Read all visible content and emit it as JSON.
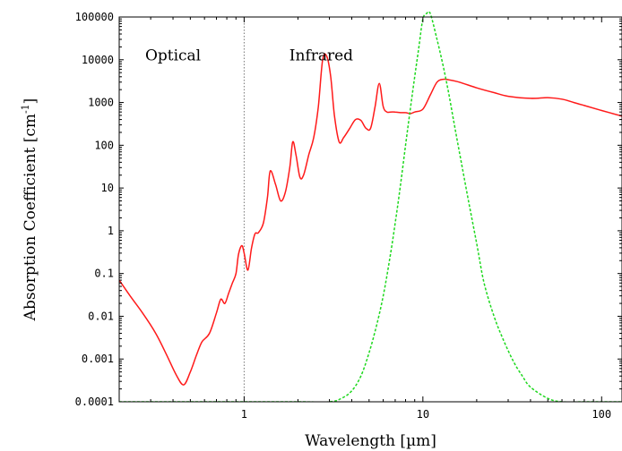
{
  "chart_data": {
    "type": "line",
    "title": "",
    "xlabel": "Wavelength  [µm]",
    "ylabel": {
      "text": "Absorption Coefficient [cm",
      "sup": "-1",
      "close": "]"
    },
    "x_scale": "log",
    "y_scale": "log",
    "xlim": [
      0.2,
      130
    ],
    "ylim": [
      0.0001,
      100000
    ],
    "x_ticks": [
      {
        "value": 1,
        "label": "1"
      },
      {
        "value": 10,
        "label": "10"
      },
      {
        "value": 100,
        "label": "100"
      }
    ],
    "y_ticks": [
      {
        "value": 0.0001,
        "label": "0.0001"
      },
      {
        "value": 0.001,
        "label": "0.001"
      },
      {
        "value": 0.01,
        "label": "0.01"
      },
      {
        "value": 0.1,
        "label": "0.1"
      },
      {
        "value": 1,
        "label": "1"
      },
      {
        "value": 10,
        "label": "10"
      },
      {
        "value": 100,
        "label": "100"
      },
      {
        "value": 1000,
        "label": "1000"
      },
      {
        "value": 10000,
        "label": "10000"
      },
      {
        "value": 100000,
        "label": "100000"
      }
    ],
    "grid": false,
    "annotations": [
      {
        "text": "Optical",
        "x": 0.4,
        "y": 13000
      },
      {
        "text": "Infrared",
        "x": 2.7,
        "y": 13000
      }
    ],
    "reference_lines": [
      {
        "orientation": "vertical",
        "x": 1,
        "style": "dotted",
        "color": "#777777"
      }
    ],
    "series": [
      {
        "color": "#ff1a1a",
        "style": "solid",
        "x": [
          0.2,
          0.23,
          0.27,
          0.32,
          0.37,
          0.42,
          0.46,
          0.5,
          0.54,
          0.58,
          0.64,
          0.7,
          0.74,
          0.78,
          0.82,
          0.86,
          0.9,
          0.93,
          0.97,
          1.0,
          1.05,
          1.1,
          1.15,
          1.2,
          1.28,
          1.35,
          1.4,
          1.5,
          1.6,
          1.7,
          1.8,
          1.87,
          1.95,
          2.05,
          2.15,
          2.3,
          2.45,
          2.6,
          2.75,
          2.9,
          3.05,
          3.2,
          3.4,
          3.6,
          3.9,
          4.2,
          4.5,
          4.8,
          5.1,
          5.4,
          5.7,
          6.0,
          6.3,
          6.6,
          7.0,
          7.5,
          8.0,
          8.5,
          9.0,
          10,
          11,
          12,
          13,
          14,
          16,
          20,
          25,
          30,
          40,
          50,
          60,
          70,
          80,
          100,
          130
        ],
        "y": [
          0.07,
          0.03,
          0.012,
          0.004,
          0.0012,
          0.0004,
          0.00025,
          0.0005,
          0.0012,
          0.0025,
          0.004,
          0.012,
          0.025,
          0.02,
          0.035,
          0.06,
          0.1,
          0.28,
          0.45,
          0.3,
          0.12,
          0.4,
          0.85,
          0.9,
          1.5,
          6,
          25,
          12,
          5,
          8,
          30,
          120,
          60,
          18,
          20,
          60,
          150,
          800,
          10000,
          12000,
          4000,
          500,
          120,
          150,
          250,
          400,
          380,
          250,
          250,
          800,
          2800,
          800,
          600,
          600,
          600,
          580,
          580,
          550,
          600,
          700,
          1500,
          3000,
          3500,
          3400,
          3000,
          2200,
          1700,
          1400,
          1250,
          1300,
          1200,
          1000,
          850,
          650,
          480
        ]
      },
      {
        "color": "#1ed81e",
        "style": "dashed",
        "x": [
          0.2,
          1,
          2,
          3,
          3.5,
          4,
          4.5,
          5,
          5.5,
          6,
          6.5,
          7,
          7.5,
          8,
          8.5,
          9,
          9.5,
          10,
          10.5,
          11,
          12,
          13,
          14,
          15,
          16,
          18,
          20,
          22,
          25,
          28,
          32,
          36,
          40,
          50,
          60,
          80,
          100,
          130
        ],
        "y": [
          0.0001,
          0.0001,
          0.0001,
          0.0001,
          0.00012,
          0.00018,
          0.0004,
          0.0014,
          0.006,
          0.03,
          0.2,
          1.5,
          12,
          100,
          700,
          4000,
          20000,
          90000,
          150000,
          120000,
          30000,
          7000,
          1500,
          300,
          70,
          5,
          0.5,
          0.06,
          0.01,
          0.003,
          0.0009,
          0.0004,
          0.00022,
          0.00012,
          0.0001,
          0.0001,
          0.0001,
          0.0001
        ]
      }
    ]
  }
}
